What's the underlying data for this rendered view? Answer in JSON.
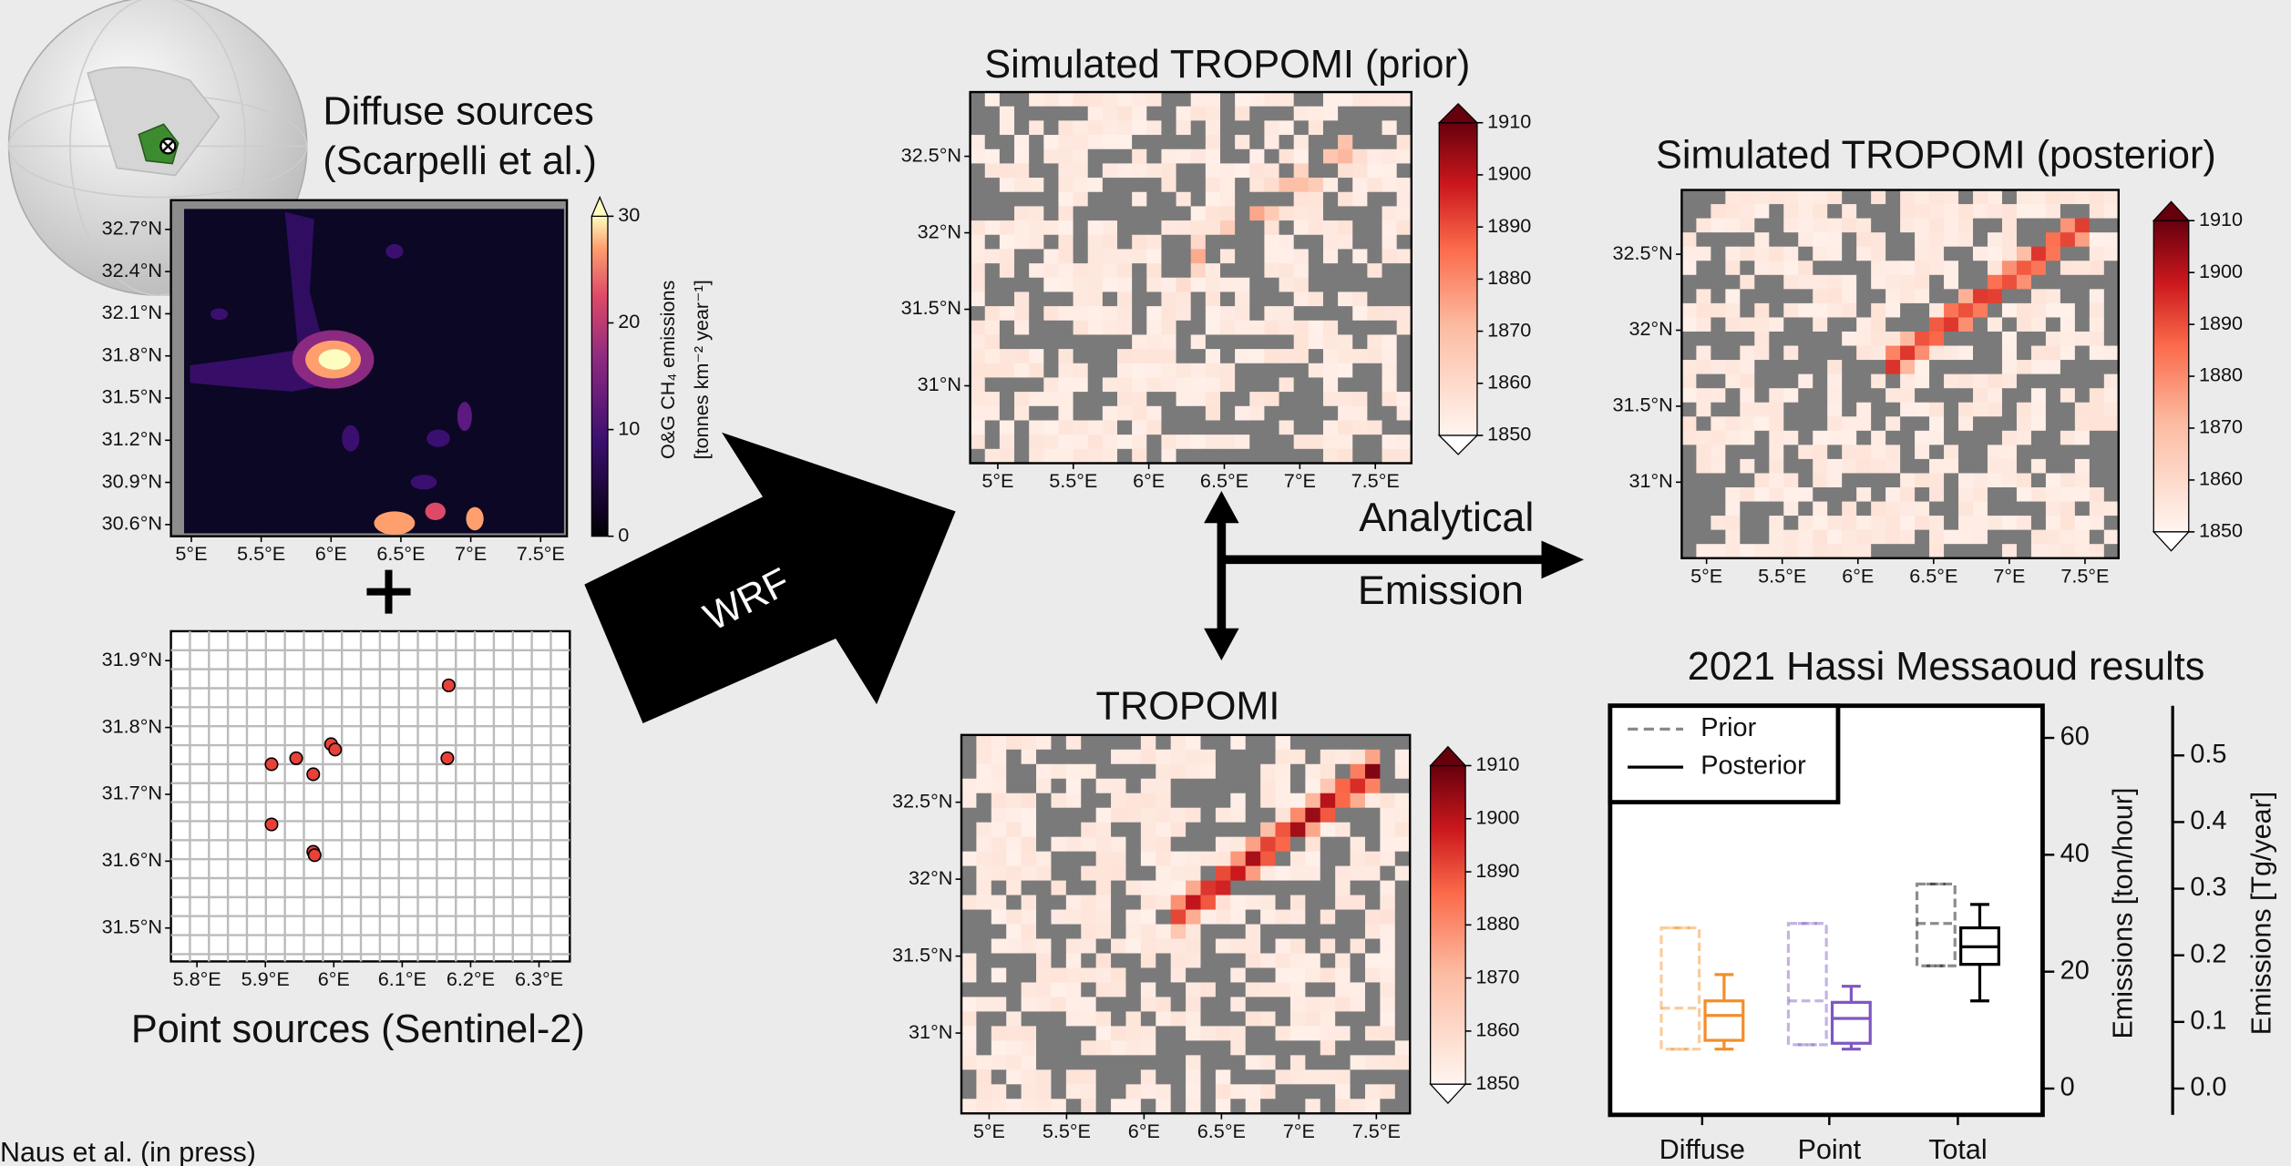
{
  "credit": "Naus et al. (in press)",
  "arrows": {
    "wrf": "WRF",
    "analytical": "Analytical",
    "emission": "Emission"
  },
  "diffuse": {
    "title": [
      "Diffuse sources",
      "(Scarpelli et al.)"
    ],
    "xlim": [
      4.854,
      7.688
    ],
    "ylim": [
      30.517,
      32.908
    ],
    "xticks": [
      {
        "value": 5,
        "label": "5°E"
      },
      {
        "value": 5.5,
        "label": "5.5°E"
      },
      {
        "value": 6,
        "label": "6°E"
      },
      {
        "value": 6.5,
        "label": "6.5°E"
      },
      {
        "value": 7,
        "label": "7°E"
      },
      {
        "value": 7.5,
        "label": "7.5°E"
      }
    ],
    "yticks": [
      {
        "value": 32.7,
        "label": "32.7°N"
      },
      {
        "value": 32.4,
        "label": "32.4°N"
      },
      {
        "value": 32.1,
        "label": "32.1°N"
      },
      {
        "value": 31.8,
        "label": "31.8°N"
      },
      {
        "value": 31.5,
        "label": "31.5°N"
      },
      {
        "value": 31.2,
        "label": "31.2°N"
      },
      {
        "value": 30.9,
        "label": "30.9°N"
      },
      {
        "value": 30.6,
        "label": "30.6°N"
      }
    ],
    "colorbar": {
      "label": [
        "O&G CH₄ emissions",
        "[tonnes km⁻² year⁻¹]"
      ],
      "lim": [
        0,
        30
      ],
      "ticks": [
        0,
        10,
        20,
        30
      ]
    }
  },
  "points": {
    "title": "Point sources (Sentinel-2)",
    "xlim": [
      5.762,
      6.345
    ],
    "ylim": [
      31.45,
      31.944
    ],
    "xticks": [
      {
        "value": 5.8,
        "label": "5.8°E"
      },
      {
        "value": 5.9,
        "label": "5.9°E"
      },
      {
        "value": 6,
        "label": "6°E"
      },
      {
        "value": 6.1,
        "label": "6.1°E"
      },
      {
        "value": 6.2,
        "label": "6.2°E"
      },
      {
        "value": 6.3,
        "label": "6.3°E"
      }
    ],
    "yticks": [
      {
        "value": 31.9,
        "label": "31.9°N"
      },
      {
        "value": 31.8,
        "label": "31.8°N"
      },
      {
        "value": 31.7,
        "label": "31.7°N"
      },
      {
        "value": 31.6,
        "label": "31.6°N"
      },
      {
        "value": 31.5,
        "label": "31.5°N"
      }
    ],
    "x": [
      6.168,
      5.909,
      5.945,
      5.97,
      5.996,
      6.002,
      6.166,
      5.909,
      5.97,
      5.972
    ],
    "y": [
      31.863,
      31.745,
      31.754,
      31.73,
      31.775,
      31.767,
      31.754,
      31.655,
      31.614,
      31.609
    ],
    "color": "#e8413a"
  },
  "maps": [
    {
      "title": "Simulated TROPOMI (prior)",
      "xlim": [
        4.817,
        7.739
      ],
      "ylim": [
        30.494,
        32.92
      ],
      "xticks": [
        {
          "value": 5,
          "label": "5°E"
        },
        {
          "value": 5.5,
          "label": "5.5°E"
        },
        {
          "value": 6,
          "label": "6°E"
        },
        {
          "value": 6.5,
          "label": "6.5°E"
        },
        {
          "value": 7,
          "label": "7°E"
        },
        {
          "value": 7.5,
          "label": "7.5°E"
        }
      ],
      "yticks": [
        {
          "value": 32.5,
          "label": "32.5°N"
        },
        {
          "value": 32,
          "label": "32°N"
        },
        {
          "value": 31.5,
          "label": "31.5°N"
        },
        {
          "value": 31,
          "label": "31°N"
        }
      ],
      "colorbar": {
        "lim": [
          1850,
          1910
        ],
        "ticks": [
          1850,
          1860,
          1870,
          1880,
          1890,
          1900,
          1910
        ]
      }
    },
    {
      "title": "Simulated TROPOMI (posterior)",
      "xlim": [
        4.836,
        7.722
      ],
      "ylim": [
        30.5,
        32.923
      ],
      "xticks": [
        {
          "value": 5,
          "label": "5°E"
        },
        {
          "value": 5.5,
          "label": "5.5°E"
        },
        {
          "value": 6,
          "label": "6°E"
        },
        {
          "value": 6.5,
          "label": "6.5°E"
        },
        {
          "value": 7,
          "label": "7°E"
        },
        {
          "value": 7.5,
          "label": "7.5°E"
        }
      ],
      "yticks": [
        {
          "value": 32.5,
          "label": "32.5°N"
        },
        {
          "value": 32,
          "label": "32°N"
        },
        {
          "value": 31.5,
          "label": "31.5°N"
        },
        {
          "value": 31,
          "label": "31°N"
        }
      ],
      "colorbar": {
        "lim": [
          1850,
          1910
        ],
        "ticks": [
          1850,
          1860,
          1870,
          1880,
          1890,
          1900,
          1910
        ]
      }
    },
    {
      "title": "TROPOMI",
      "xlim": [
        4.821,
        7.717
      ],
      "ylim": [
        30.478,
        32.937
      ],
      "xticks": [
        {
          "value": 5,
          "label": "5°E"
        },
        {
          "value": 5.5,
          "label": "5.5°E"
        },
        {
          "value": 6,
          "label": "6°E"
        },
        {
          "value": 6.5,
          "label": "6.5°E"
        },
        {
          "value": 7,
          "label": "7°E"
        },
        {
          "value": 7.5,
          "label": "7.5°E"
        }
      ],
      "yticks": [
        {
          "value": 32.5,
          "label": "32.5°N"
        },
        {
          "value": 32,
          "label": "32°N"
        },
        {
          "value": 31.5,
          "label": "31.5°N"
        },
        {
          "value": 31,
          "label": "31°N"
        }
      ],
      "colorbar": {
        "lim": [
          1850,
          1910
        ],
        "ticks": [
          1850,
          1860,
          1870,
          1880,
          1890,
          1900,
          1910
        ]
      }
    }
  ],
  "chart_data": {
    "type": "box",
    "title": "2021 Hassi Messaoud results",
    "categories": [
      "Diffuse",
      "Point",
      "Total"
    ],
    "colors": [
      "#f28e2b",
      "#7e57c2",
      "#000000"
    ],
    "series": [
      {
        "name": "Prior",
        "linestyle": "dashed",
        "color": "#888888",
        "min": [
          6.75,
          7.5,
          21
        ],
        "q1": [
          6.75,
          7.5,
          21
        ],
        "median": [
          13.75,
          15,
          28.25
        ],
        "q3": [
          27.5,
          28.25,
          35
        ],
        "max": [
          27.5,
          28.25,
          35
        ]
      },
      {
        "name": "Posterior",
        "linestyle": "solid",
        "color": "#000000",
        "min": [
          6.75,
          6.75,
          15
        ],
        "q1": [
          8.25,
          7.75,
          21.25
        ],
        "median": [
          12.5,
          12,
          24.25
        ],
        "q3": [
          15,
          14.75,
          27.5
        ],
        "max": [
          19.5,
          17.5,
          31.5
        ]
      }
    ],
    "ylabel": "Emissions [ton/hour]",
    "ylim": [
      -4.5,
      65.5
    ],
    "yticks": [
      0,
      20,
      40,
      60
    ],
    "y2label": "Emissions [Tg/year]",
    "y2lim": [
      -0.0395,
      0.5746
    ],
    "y2ticks": [
      {
        "value": 0,
        "label": "0.0"
      },
      0.1,
      0.2,
      0.3,
      0.4,
      0.5
    ],
    "legend": "upper left"
  }
}
